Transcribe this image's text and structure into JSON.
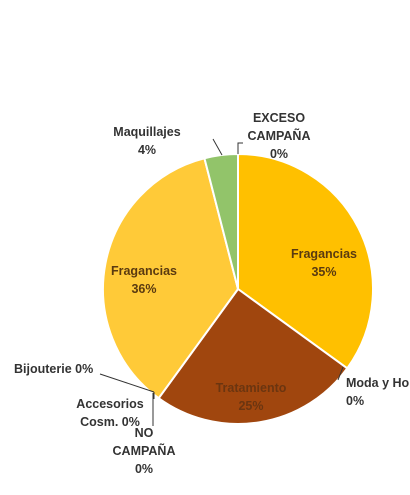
{
  "chart_data": {
    "type": "pie",
    "slices": [
      {
        "name": "Fragancias",
        "value": 35,
        "label_lines": [
          "Fragancias",
          "35%"
        ],
        "color": "#FFC000",
        "label_color": "#5a3a10"
      },
      {
        "name": "Moda y Hogar",
        "value": 0,
        "label_lines": [
          "Moda y Ho",
          "0%"
        ],
        "color": "#FFC000",
        "label_color": "#333333"
      },
      {
        "name": "Tratamiento",
        "value": 25,
        "label_lines": [
          "Tratamiento",
          "25%"
        ],
        "color": "#A0460E",
        "label_color": "#6b3510"
      },
      {
        "name": "NO CAMPAÑA",
        "value": 0,
        "label_lines": [
          "NO",
          "CAMPAÑA",
          "0%"
        ],
        "color": "#A0460E",
        "label_color": "#333333"
      },
      {
        "name": "Accesorios Cosm.",
        "value": 0,
        "label_lines": [
          "Accesorios",
          "Cosm. 0%"
        ],
        "color": "#FFC000",
        "label_color": "#333333"
      },
      {
        "name": "Bijouterie",
        "value": 0,
        "label_lines": [
          "Bijouterie 0%"
        ],
        "color": "#FFC000",
        "label_color": "#333333"
      },
      {
        "name": "Fragancias",
        "value": 36,
        "label_lines": [
          "Fragancias",
          "36%"
        ],
        "color": "#FFCA38",
        "label_color": "#5a3a10"
      },
      {
        "name": "Maquillajes",
        "value": 4,
        "label_lines": [
          "Maquillajes",
          "4%"
        ],
        "color": "#92C46A",
        "label_color": "#333333"
      },
      {
        "name": "EXCESO CAMPAÑA",
        "value": 0,
        "label_lines": [
          "EXCESO",
          "CAMPAÑA",
          "0%"
        ],
        "color": "#92C46A",
        "label_color": "#333333"
      }
    ],
    "legend": "none"
  }
}
